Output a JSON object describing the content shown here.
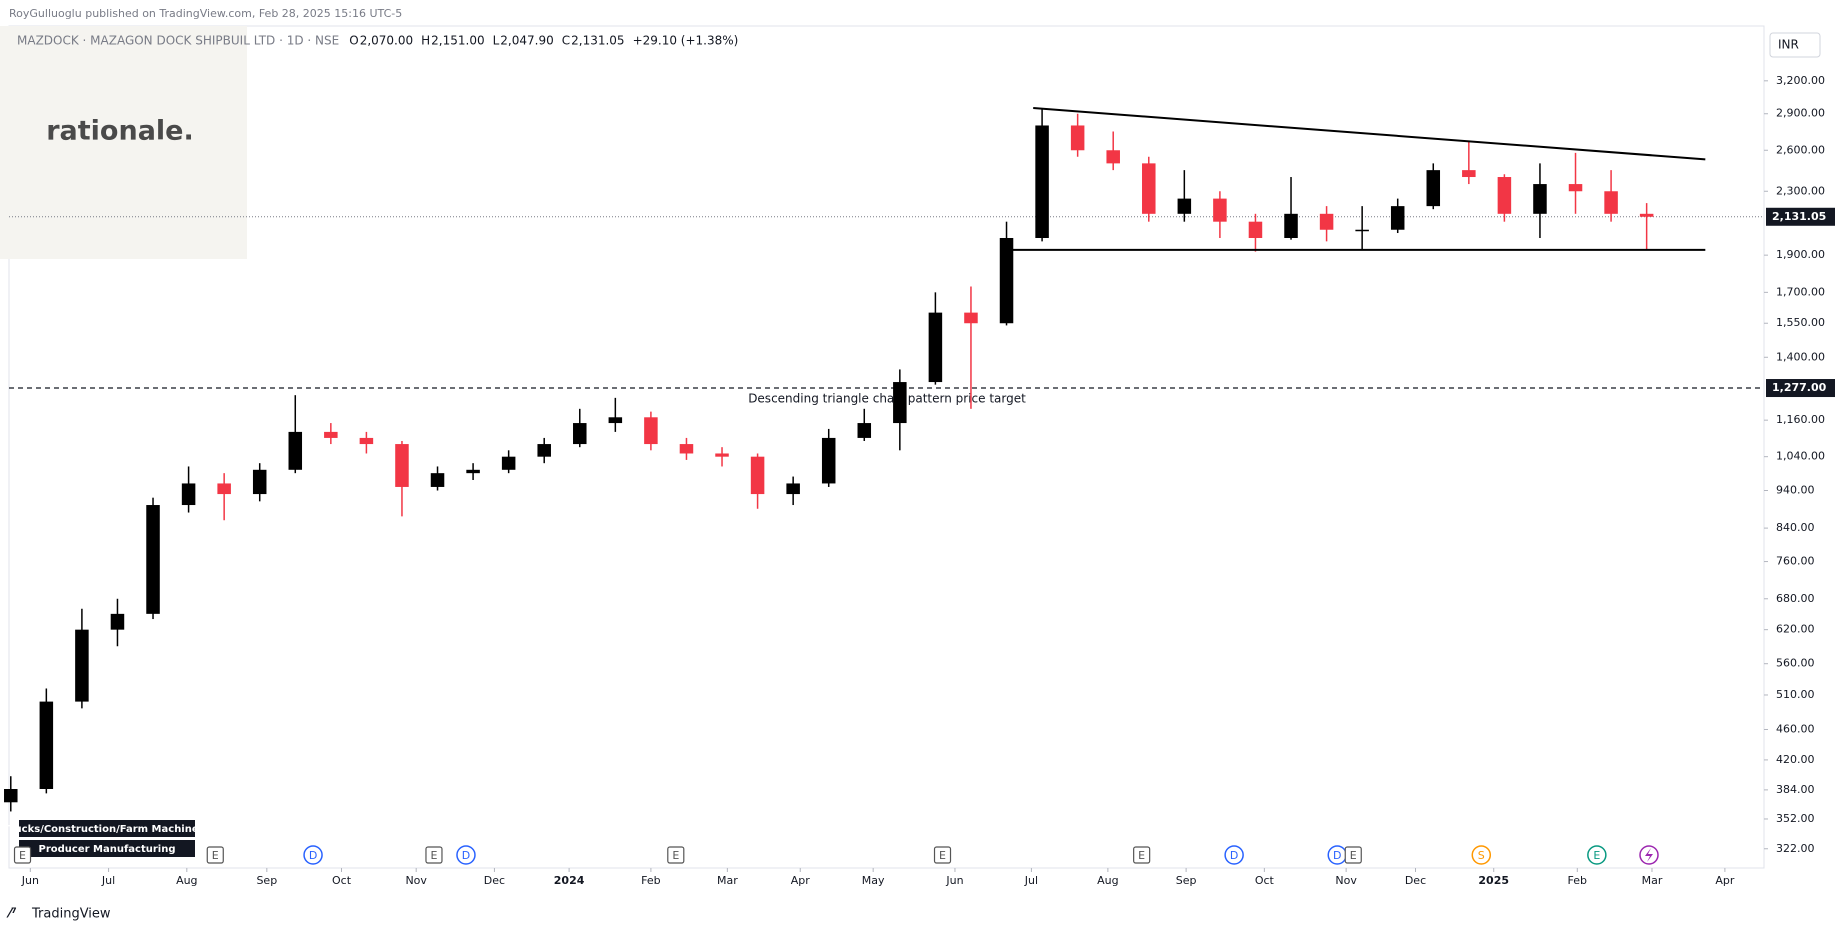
{
  "header": {
    "credit": "RoyGulluoglu published on TradingView.com, Feb 28, 2025 15:16 UTC-5",
    "symbol": "MAZDOCK · MAZAGON DOCK SHIPBUIL LTD · 1D · NSE",
    "ohlc": [
      {
        "key": "O",
        "value": "2,070.00"
      },
      {
        "key": "H",
        "value": "2,151.00"
      },
      {
        "key": "L",
        "value": "2,047.90"
      },
      {
        "key": "C",
        "value": "2,131.05"
      }
    ],
    "change": "+29.10 (+1.38%)"
  },
  "watermark": "rationale.",
  "footer": "TradingView",
  "chart_data": {
    "type": "candlestick",
    "currency": "INR",
    "log_scale": true,
    "up_color": "#000000",
    "down_color": "#f23645",
    "x": [
      0,
      2,
      4,
      6,
      8,
      10,
      12,
      14,
      16,
      18,
      20,
      22,
      24,
      26,
      28,
      30,
      32,
      34,
      36,
      38,
      40,
      42,
      44,
      46,
      48,
      50,
      52,
      54,
      56,
      58,
      60,
      62,
      64,
      66,
      68,
      70,
      72,
      74,
      76,
      78,
      80,
      82,
      84,
      86,
      88,
      90,
      92
    ],
    "open": [
      370,
      385,
      500,
      620,
      650,
      900,
      960,
      930,
      1000,
      1120,
      1100,
      1080,
      950,
      990,
      1000,
      1040,
      1080,
      1150,
      1170,
      1080,
      1050,
      1040,
      930,
      960,
      1100,
      1150,
      1300,
      1600,
      1550,
      2000,
      2800,
      2600,
      2500,
      2150,
      2250,
      2100,
      2000,
      2150,
      2050,
      2050,
      2200,
      2450,
      2400,
      2150,
      2350,
      2300,
      2150
    ],
    "high": [
      400,
      520,
      660,
      680,
      920,
      1010,
      990,
      1020,
      1250,
      1150,
      1120,
      1090,
      1010,
      1020,
      1060,
      1100,
      1200,
      1240,
      1190,
      1100,
      1070,
      1050,
      980,
      1130,
      1200,
      1350,
      1700,
      1730,
      2100,
      2950,
      2900,
      2750,
      2550,
      2450,
      2300,
      2150,
      2400,
      2200,
      2200,
      2250,
      2500,
      2670,
      2420,
      2500,
      2580,
      2450,
      2220
    ],
    "low": [
      360,
      380,
      490,
      590,
      640,
      880,
      860,
      910,
      990,
      1080,
      1050,
      870,
      940,
      970,
      990,
      1020,
      1070,
      1120,
      1060,
      1030,
      1010,
      890,
      900,
      950,
      1090,
      1060,
      1290,
      1200,
      1540,
      1980,
      2550,
      2450,
      2100,
      2100,
      2000,
      1920,
      1990,
      1980,
      1930,
      2030,
      2180,
      2350,
      2100,
      2000,
      2150,
      2100,
      1930
    ],
    "close": [
      385,
      500,
      620,
      650,
      900,
      960,
      930,
      1000,
      1120,
      1100,
      1080,
      950,
      990,
      1000,
      1040,
      1080,
      1150,
      1170,
      1080,
      1050,
      1040,
      930,
      960,
      1100,
      1150,
      1300,
      1600,
      1550,
      2000,
      2800,
      2600,
      2500,
      2150,
      2250,
      2100,
      2000,
      2150,
      2050,
      2050,
      2200,
      2450,
      2400,
      2150,
      2350,
      2300,
      2150,
      2131.05
    ],
    "xlim": [
      -0.1,
      98.6
    ],
    "xticks": [
      {
        "value": 1.1,
        "label": "Jun"
      },
      {
        "value": 5.5,
        "label": "Jul"
      },
      {
        "value": 9.9,
        "label": "Aug"
      },
      {
        "value": 14.4,
        "label": "Sep"
      },
      {
        "value": 18.6,
        "label": "Oct"
      },
      {
        "value": 22.8,
        "label": "Nov"
      },
      {
        "value": 27.2,
        "label": "Dec"
      },
      {
        "value": 31.4,
        "label": "2024"
      },
      {
        "value": 36.0,
        "label": "Feb"
      },
      {
        "value": 40.3,
        "label": "Mar"
      },
      {
        "value": 44.4,
        "label": "Apr"
      },
      {
        "value": 48.5,
        "label": "May"
      },
      {
        "value": 53.1,
        "label": "Jun"
      },
      {
        "value": 57.4,
        "label": "Jul"
      },
      {
        "value": 61.7,
        "label": "Aug"
      },
      {
        "value": 66.1,
        "label": "Sep"
      },
      {
        "value": 70.5,
        "label": "Oct"
      },
      {
        "value": 75.1,
        "label": "Nov"
      },
      {
        "value": 79.0,
        "label": "Dec"
      },
      {
        "value": 83.4,
        "label": "2025"
      },
      {
        "value": 88.1,
        "label": "Feb"
      },
      {
        "value": 92.3,
        "label": "Mar"
      },
      {
        "value": 96.4,
        "label": "Apr"
      }
    ],
    "ylim": [
      304,
      3770
    ],
    "yticks": [
      {
        "value": 322,
        "label": "322.00"
      },
      {
        "value": 352,
        "label": "352.00"
      },
      {
        "value": 384,
        "label": "384.00"
      },
      {
        "value": 420,
        "label": "420.00"
      },
      {
        "value": 460,
        "label": "460.00"
      },
      {
        "value": 510,
        "label": "510.00"
      },
      {
        "value": 560,
        "label": "560.00"
      },
      {
        "value": 620,
        "label": "620.00"
      },
      {
        "value": 680,
        "label": "680.00"
      },
      {
        "value": 760,
        "label": "760.00"
      },
      {
        "value": 840,
        "label": "840.00"
      },
      {
        "value": 940,
        "label": "940.00"
      },
      {
        "value": 1040,
        "label": "1,040.00"
      },
      {
        "value": 1160,
        "label": "1,160.00"
      },
      {
        "value": 1400,
        "label": "1,400.00"
      },
      {
        "value": 1550,
        "label": "1,550.00"
      },
      {
        "value": 1700,
        "label": "1,700.00"
      },
      {
        "value": 1900,
        "label": "1,900.00"
      },
      {
        "value": 2300,
        "label": "2,300.00"
      },
      {
        "value": 2600,
        "label": "2,600.00"
      },
      {
        "value": 2900,
        "label": "2,900.00"
      },
      {
        "value": 3200,
        "label": "3,200.00"
      }
    ],
    "price_line": {
      "value": 2131.05,
      "label": "2,131.05"
    },
    "target_line": {
      "value": 1277,
      "label": "1,277.00",
      "annotation": "Descending triangle chart pattern price target"
    },
    "trendlines": [
      {
        "x": [
          57.5,
          95.3
        ],
        "y": [
          2950,
          2530
        ]
      },
      {
        "x": [
          56.1,
          95.3
        ],
        "y": [
          1930,
          1930
        ]
      }
    ],
    "events": [
      {
        "x": 0.66,
        "label": "E",
        "shape": "square",
        "color": "#555555"
      },
      {
        "x": 11.5,
        "label": "E",
        "shape": "square",
        "color": "#555555"
      },
      {
        "x": 17.0,
        "label": "D",
        "shape": "circle",
        "color": "#2962ff"
      },
      {
        "x": 23.8,
        "label": "E",
        "shape": "square",
        "color": "#555555"
      },
      {
        "x": 25.6,
        "label": "D",
        "shape": "circle",
        "color": "#2962ff"
      },
      {
        "x": 37.4,
        "label": "E",
        "shape": "square",
        "color": "#555555"
      },
      {
        "x": 52.4,
        "label": "E",
        "shape": "square",
        "color": "#555555"
      },
      {
        "x": 63.6,
        "label": "E",
        "shape": "square",
        "color": "#555555"
      },
      {
        "x": 68.8,
        "label": "D",
        "shape": "circle",
        "color": "#2962ff"
      },
      {
        "x": 74.6,
        "label": "D",
        "shape": "circle",
        "color": "#2962ff"
      },
      {
        "x": 75.5,
        "label": "E",
        "shape": "square",
        "color": "#555555"
      },
      {
        "x": 82.7,
        "label": "S",
        "shape": "circle",
        "color": "#ff9800"
      },
      {
        "x": 89.2,
        "label": "E",
        "shape": "circle",
        "color": "#089981"
      }
    ],
    "sector_tags": [
      "Trucks/Construction/Farm Machinery",
      "Producer Manufacturing"
    ]
  }
}
